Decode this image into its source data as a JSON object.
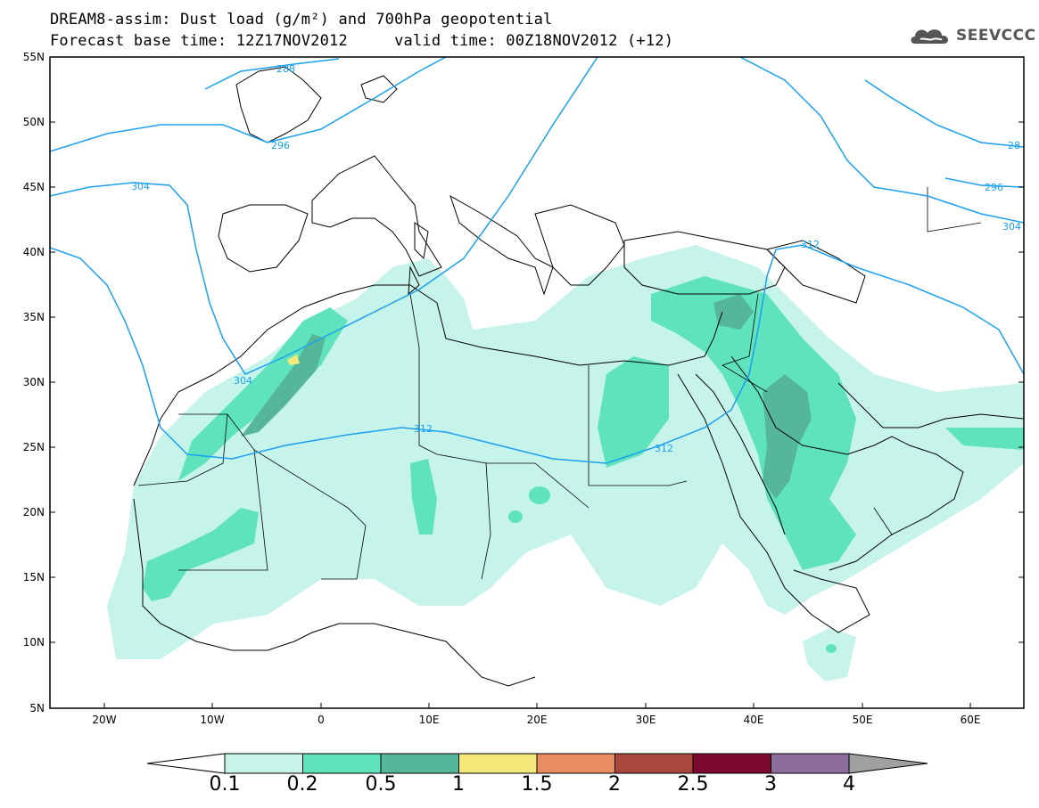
{
  "title": {
    "line1": "DREAM8-assim: Dust load (g/m²) and 700hPa geopotential",
    "line2": "Forecast base time: 12Z17NOV2012     valid time: 00Z18NOV2012 (+12)"
  },
  "logo": {
    "text": "SEEVCCC",
    "icon": "cloud-icon"
  },
  "map": {
    "lat_labels": [
      "55N",
      "50N",
      "45N",
      "40N",
      "35N",
      "30N",
      "25N",
      "20N",
      "15N",
      "10N",
      "5N"
    ],
    "lon_labels": [
      "20W",
      "10W",
      "0",
      "10E",
      "20E",
      "30E",
      "40E",
      "50E",
      "60E"
    ],
    "contour_labels": [
      "288",
      "296",
      "304",
      "304",
      "312",
      "312",
      "312",
      "28",
      "296",
      "304"
    ]
  },
  "colorbar": {
    "labels": [
      "0.1",
      "0.2",
      "0.5",
      "1",
      "1.5",
      "2",
      "2.5",
      "3",
      "4"
    ],
    "colors": [
      "#c6f3ea",
      "#5fe3bd",
      "#55b69a",
      "#f5e87b",
      "#e98c64",
      "#a8473c",
      "#7b0a2e",
      "#8d6d9d",
      "#a0a0a0"
    ]
  }
}
